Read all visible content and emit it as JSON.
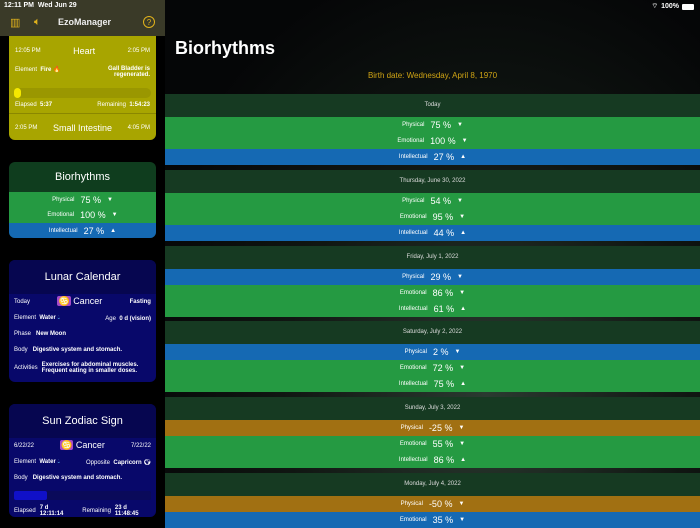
{
  "status": {
    "time": "12:11 PM",
    "date": "Wed Jun 29",
    "battery": "100%"
  },
  "sidebar": {
    "app_title": "EzoManager",
    "heart": {
      "start": "12:05 PM",
      "organ": "Heart",
      "end": "2:05 PM",
      "element_label": "Element",
      "element": "Fire",
      "note": "Gall Bladder is regenerated.",
      "progress": 0.05,
      "elapsed_label": "Elapsed",
      "elapsed": "5:37",
      "remaining_label": "Remaining",
      "remaining": "1:54:23",
      "next_start": "2:05 PM",
      "next_organ": "Small Intestine",
      "next_end": "4:05 PM"
    },
    "bio": {
      "title": "Biorhythms",
      "rows": [
        {
          "label": "Physical",
          "value": "75 %",
          "arrow": "▼",
          "color": "green"
        },
        {
          "label": "Emotional",
          "value": "100 %",
          "arrow": "▼",
          "color": "green"
        },
        {
          "label": "Intellectual",
          "value": "27 %",
          "arrow": "▲",
          "color": "blue"
        }
      ]
    },
    "lunar": {
      "title": "Lunar Calendar",
      "today_label": "Today",
      "sign": "Cancer",
      "fasting": "Fasting",
      "element_label": "Element",
      "element": "Water",
      "age_label": "Age",
      "age": "0 d (vision)",
      "phase_label": "Phase",
      "phase": "New Moon",
      "body_label": "Body",
      "body": "Digestive system and stomach.",
      "activities_label": "Activities",
      "activities": "Exercises for abdominal muscles. Frequent eating in smaller doses."
    },
    "sun": {
      "title": "Sun Zodiac Sign",
      "start": "6/22/22",
      "sign": "Cancer",
      "end": "7/22/22",
      "element_label": "Element",
      "element": "Water",
      "opposite_label": "Opposite",
      "opposite": "Capricorn",
      "body_label": "Body",
      "body": "Digestive system and stomach.",
      "progress": 0.24,
      "elapsed_label": "Elapsed",
      "elapsed": "7 d  12:11:14",
      "remaining_label": "Remaining",
      "remaining": "23 d  11:48:45"
    }
  },
  "main": {
    "title": "Biorhythms",
    "birth": "Birth date: Wednesday, April 8, 1970",
    "colors": {
      "green": "#259a42",
      "blue": "#1569b3",
      "orange": "#a17012"
    },
    "days": [
      {
        "date": "Today",
        "rows": [
          {
            "label": "Physical",
            "value": "75 %",
            "arrow": "▼",
            "color": "green"
          },
          {
            "label": "Emotional",
            "value": "100 %",
            "arrow": "▼",
            "color": "green"
          },
          {
            "label": "Intellectual",
            "value": "27 %",
            "arrow": "▲",
            "color": "blue"
          }
        ]
      },
      {
        "date": "Thursday, June 30, 2022",
        "rows": [
          {
            "label": "Physical",
            "value": "54 %",
            "arrow": "▼",
            "color": "green"
          },
          {
            "label": "Emotional",
            "value": "95 %",
            "arrow": "▼",
            "color": "green"
          },
          {
            "label": "Intellectual",
            "value": "44 %",
            "arrow": "▲",
            "color": "blue"
          }
        ]
      },
      {
        "date": "Friday, July 1, 2022",
        "rows": [
          {
            "label": "Physical",
            "value": "29 %",
            "arrow": "▼",
            "color": "blue"
          },
          {
            "label": "Emotional",
            "value": "86 %",
            "arrow": "▼",
            "color": "green"
          },
          {
            "label": "Intellectual",
            "value": "61 %",
            "arrow": "▲",
            "color": "green"
          }
        ]
      },
      {
        "date": "Saturday, July 2, 2022",
        "rows": [
          {
            "label": "Physical",
            "value": "2 %",
            "arrow": "▼",
            "color": "blue"
          },
          {
            "label": "Emotional",
            "value": "72 %",
            "arrow": "▼",
            "color": "green"
          },
          {
            "label": "Intellectual",
            "value": "75 %",
            "arrow": "▲",
            "color": "green"
          }
        ]
      },
      {
        "date": "Sunday, July 3, 2022",
        "rows": [
          {
            "label": "Physical",
            "value": "-25 %",
            "arrow": "▼",
            "color": "orange"
          },
          {
            "label": "Emotional",
            "value": "55 %",
            "arrow": "▼",
            "color": "green"
          },
          {
            "label": "Intellectual",
            "value": "86 %",
            "arrow": "▲",
            "color": "green"
          }
        ]
      },
      {
        "date": "Monday, July 4, 2022",
        "rows": [
          {
            "label": "Physical",
            "value": "-50 %",
            "arrow": "▼",
            "color": "orange"
          },
          {
            "label": "Emotional",
            "value": "35 %",
            "arrow": "▼",
            "color": "blue"
          }
        ]
      }
    ]
  }
}
